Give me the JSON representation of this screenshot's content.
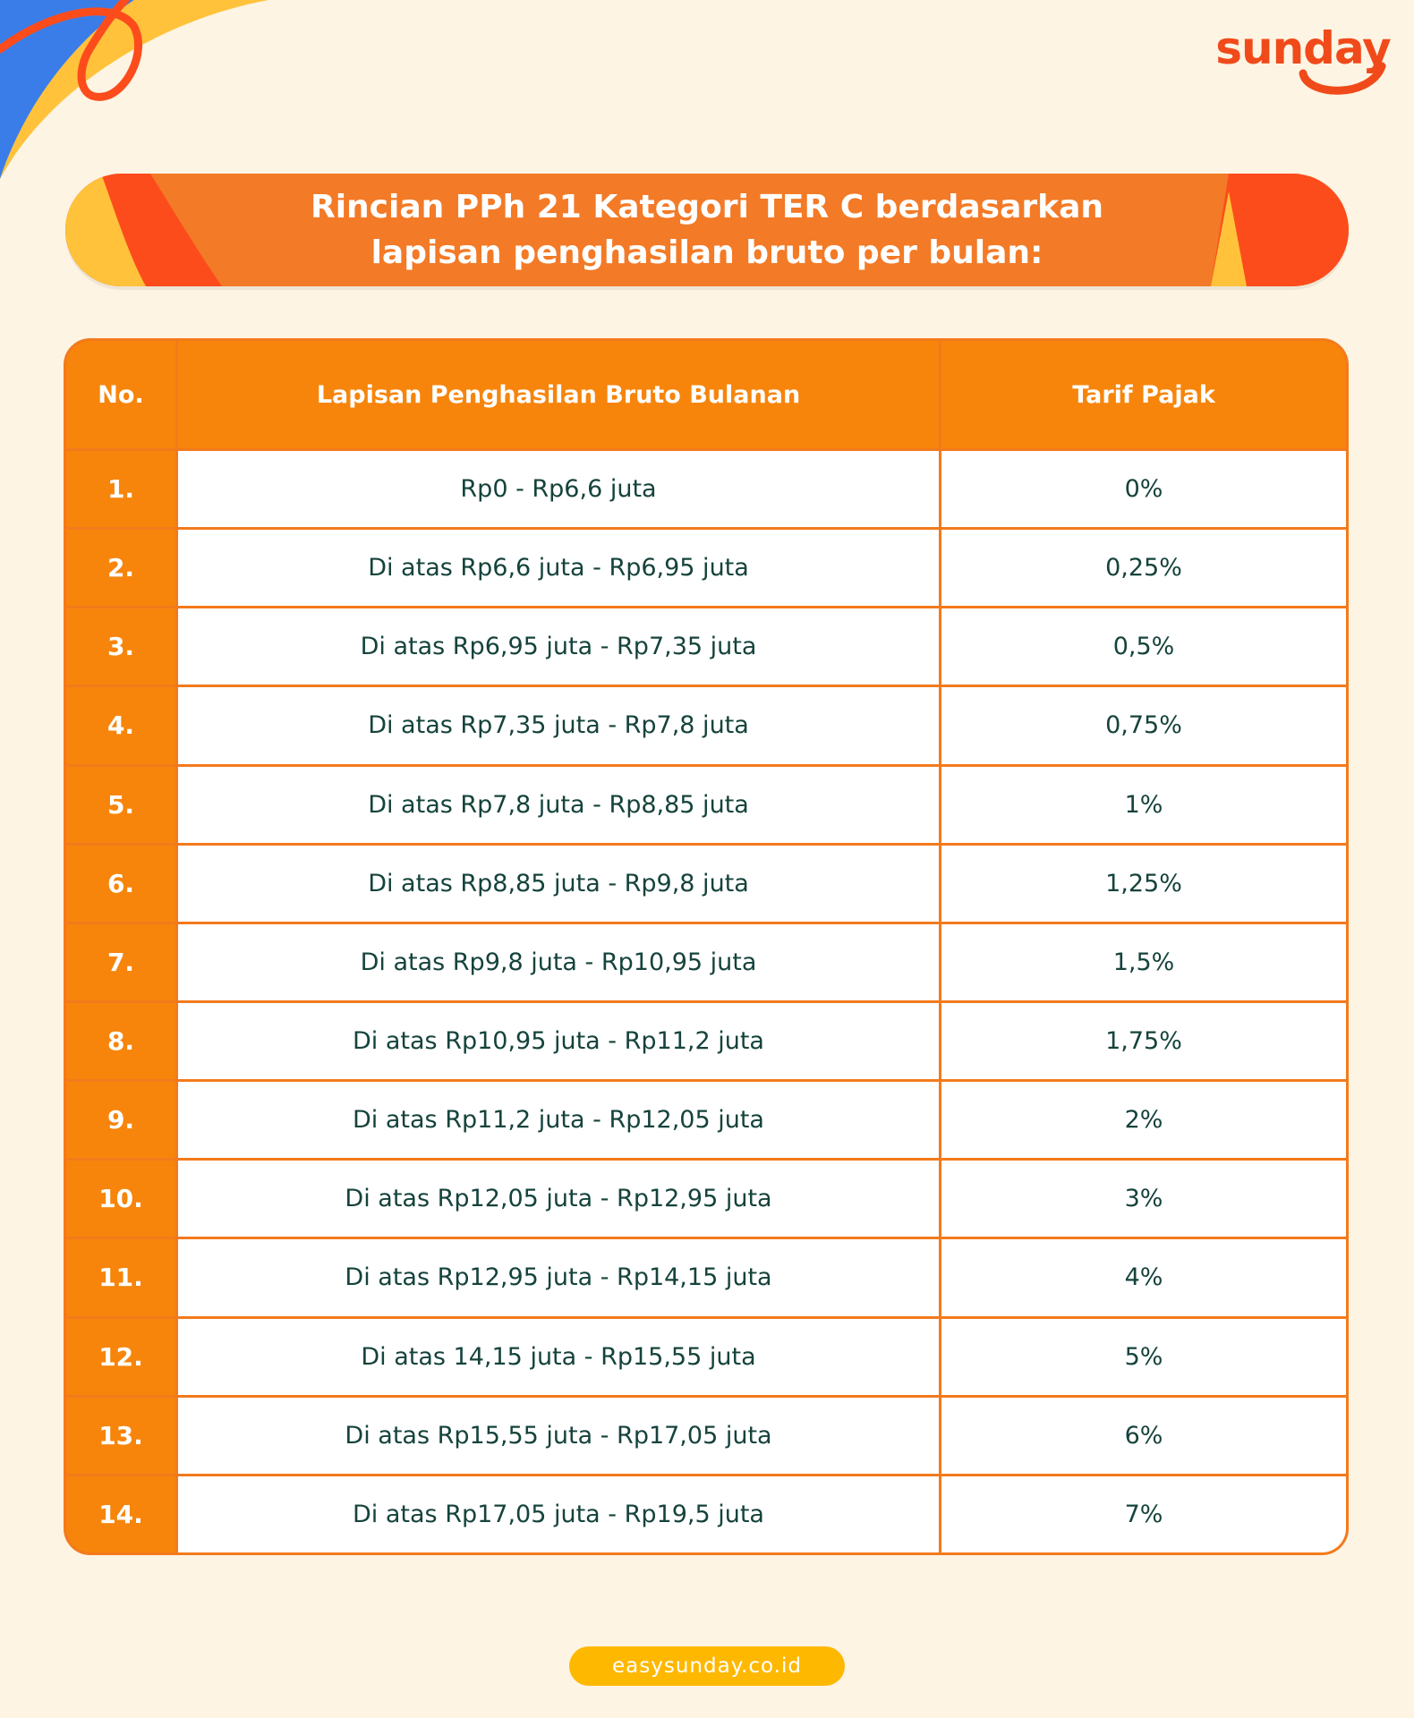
{
  "brand": {
    "logo_text": "sunday",
    "logo_color": "#f04a1a"
  },
  "header": {
    "title": "Rincian PPh 21 Kategori TER C berdasarkan\nlapisan penghasilan bruto per bulan:"
  },
  "table": {
    "columns": [
      "No.",
      "Lapisan Penghasilan Bruto Bulanan",
      "Tarif Pajak"
    ],
    "rows": [
      {
        "no": "1.",
        "range": "Rp0 - Rp6,6 juta",
        "rate": "0%"
      },
      {
        "no": "2.",
        "range": "Di atas Rp6,6 juta - Rp6,95 juta",
        "rate": "0,25%"
      },
      {
        "no": "3.",
        "range": "Di atas Rp6,95 juta - Rp7,35 juta",
        "rate": "0,5%"
      },
      {
        "no": "4.",
        "range": "Di atas Rp7,35 juta - Rp7,8 juta",
        "rate": "0,75%"
      },
      {
        "no": "5.",
        "range": "Di atas Rp7,8 juta - Rp8,85 juta",
        "rate": "1%"
      },
      {
        "no": "6.",
        "range": "Di atas Rp8,85 juta - Rp9,8 juta",
        "rate": "1,25%"
      },
      {
        "no": "7.",
        "range": "Di atas Rp9,8 juta - Rp10,95 juta",
        "rate": "1,5%"
      },
      {
        "no": "8.",
        "range": "Di atas Rp10,95 juta - Rp11,2 juta",
        "rate": "1,75%"
      },
      {
        "no": "9.",
        "range": "Di atas Rp11,2 juta - Rp12,05 juta",
        "rate": "2%"
      },
      {
        "no": "10.",
        "range": "Di atas Rp12,05 juta - Rp12,95 juta",
        "rate": "3%"
      },
      {
        "no": "11.",
        "range": "Di atas Rp12,95 juta - Rp14,15 juta",
        "rate": "4%"
      },
      {
        "no": "12.",
        "range": "Di atas 14,15 juta - Rp15,55 juta",
        "rate": "5%"
      },
      {
        "no": "13.",
        "range": "Di atas Rp15,55 juta - Rp17,05 juta",
        "rate": "6%"
      },
      {
        "no": "14.",
        "range": "Di atas Rp17,05 juta - Rp19,5 juta",
        "rate": "7%"
      }
    ]
  },
  "footer": {
    "website": "easysunday.co.id"
  },
  "colors": {
    "background": "#fdf4e3",
    "orange": "#f7850b",
    "banner": "#f37a26",
    "red": "#fc4c1c",
    "yellow": "#ffc23a",
    "blue": "#3b7de8",
    "text_dark": "#15433c",
    "pill": "#ffb800"
  }
}
